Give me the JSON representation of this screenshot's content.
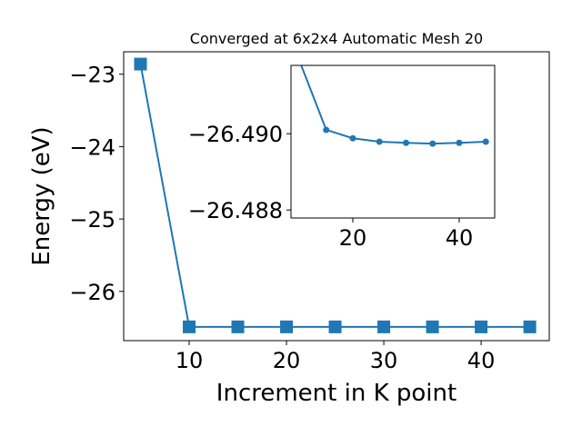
{
  "chart_data": [
    {
      "type": "line",
      "title": "Converged at 6x2x4 Automatic Mesh 20",
      "x_label": "Increment in K point",
      "y_label": "Energy (eV)",
      "x": [
        5,
        10,
        15,
        20,
        25,
        30,
        35,
        40,
        45
      ],
      "series": [
        {
          "color": "#1f77b4",
          "marker": "square",
          "values": [
            -22.86,
            -26.49,
            -26.49,
            -26.49,
            -26.49,
            -26.49,
            -26.49,
            -26.49,
            -26.49
          ]
        }
      ],
      "xlim": [
        3.27,
        47.0
      ],
      "ylim": [
        -26.68,
        -22.69
      ],
      "xticks": [
        10,
        20,
        30,
        40
      ],
      "yticks": [
        {
          "value": -26,
          "label": "−26"
        },
        {
          "value": -25,
          "label": "−25"
        },
        {
          "value": -24,
          "label": "−24"
        },
        {
          "value": -23,
          "label": "−23"
        }
      ]
    },
    {
      "type": "line",
      "x": [
        10,
        15,
        20,
        25,
        30,
        35,
        40,
        45
      ],
      "series": [
        {
          "color": "#1f77b4",
          "marker": "circle",
          "values": [
            -26.4919,
            -26.4901,
            -26.48988,
            -26.48979,
            -26.48976,
            -26.48974,
            -26.48976,
            -26.48979
          ]
        }
      ],
      "xlim": [
        8.38,
        46.67
      ],
      "ylim": [
        -26.48779,
        -26.49179
      ],
      "xticks": [
        20,
        40
      ],
      "yticks": [
        {
          "value": -26.49,
          "label": "−26.490"
        },
        {
          "value": -26.488,
          "label": "−26.488"
        }
      ]
    }
  ]
}
